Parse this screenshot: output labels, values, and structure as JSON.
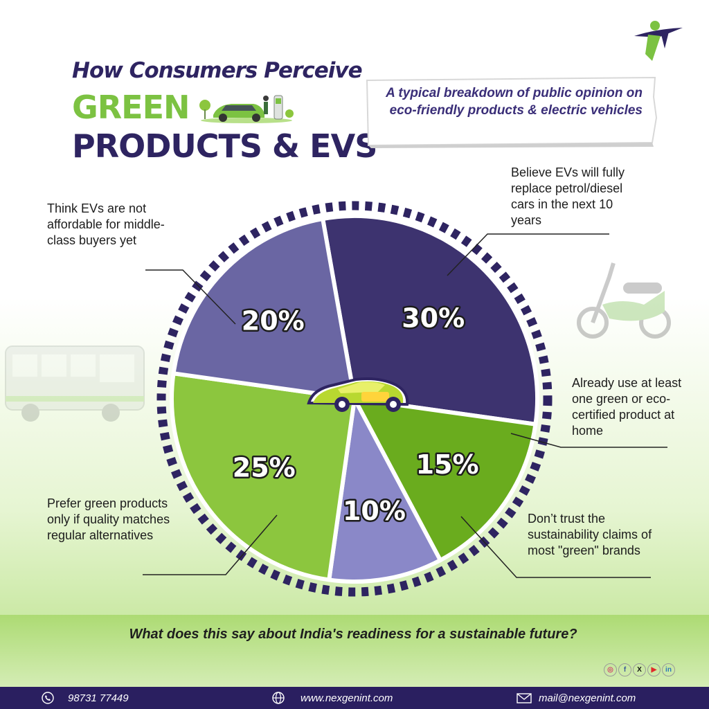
{
  "header": {
    "title_line1": "How Consumers Perceive",
    "title_line2": "GREEN",
    "title_line3": "PRODUCTS & EVS",
    "subtitle": "A typical breakdown of public opinion on eco-friendly products & electric vehicles"
  },
  "chart_data": {
    "type": "pie",
    "slices": [
      {
        "label": "Believe EVs will fully replace petrol/diesel cars in the next 10 years",
        "value": 30,
        "value_label": "30%",
        "color": "#3d336f"
      },
      {
        "label": "Already use at least one green or eco-certified product at home",
        "value": 15,
        "value_label": "15%",
        "color": "#6aac1e"
      },
      {
        "label": "Don’t trust the sustainability claims of most \"green\" brands",
        "value": 10,
        "value_label": "10%",
        "color": "#8a88c8"
      },
      {
        "label": "Prefer green products only if quality matches regular alternatives",
        "value": 25,
        "value_label": "25%",
        "color": "#8cc63e"
      },
      {
        "label": "Think EVs are not affordable for middle-class buyers yet",
        "value": 20,
        "value_label": "20%",
        "color": "#6a66a3"
      }
    ]
  },
  "footer": {
    "question": "What does this say about India's readiness for a sustainable future?",
    "phone": "98731 77449",
    "website": "www.nexgenint.com",
    "email": "mail@nexgenint.com"
  },
  "social": [
    {
      "name": "instagram-icon",
      "glyph": "◎",
      "color": "#d1476a"
    },
    {
      "name": "facebook-icon",
      "glyph": "f",
      "color": "#3b5998"
    },
    {
      "name": "x-icon",
      "glyph": "X",
      "color": "#111111"
    },
    {
      "name": "youtube-icon",
      "glyph": "▶",
      "color": "#e02a2a"
    },
    {
      "name": "linkedin-icon",
      "glyph": "in",
      "color": "#2a78b8"
    }
  ],
  "colors": {
    "brand_dark": "#2e2461",
    "brand_green": "#7cc242",
    "bar": "#2a1f60"
  }
}
